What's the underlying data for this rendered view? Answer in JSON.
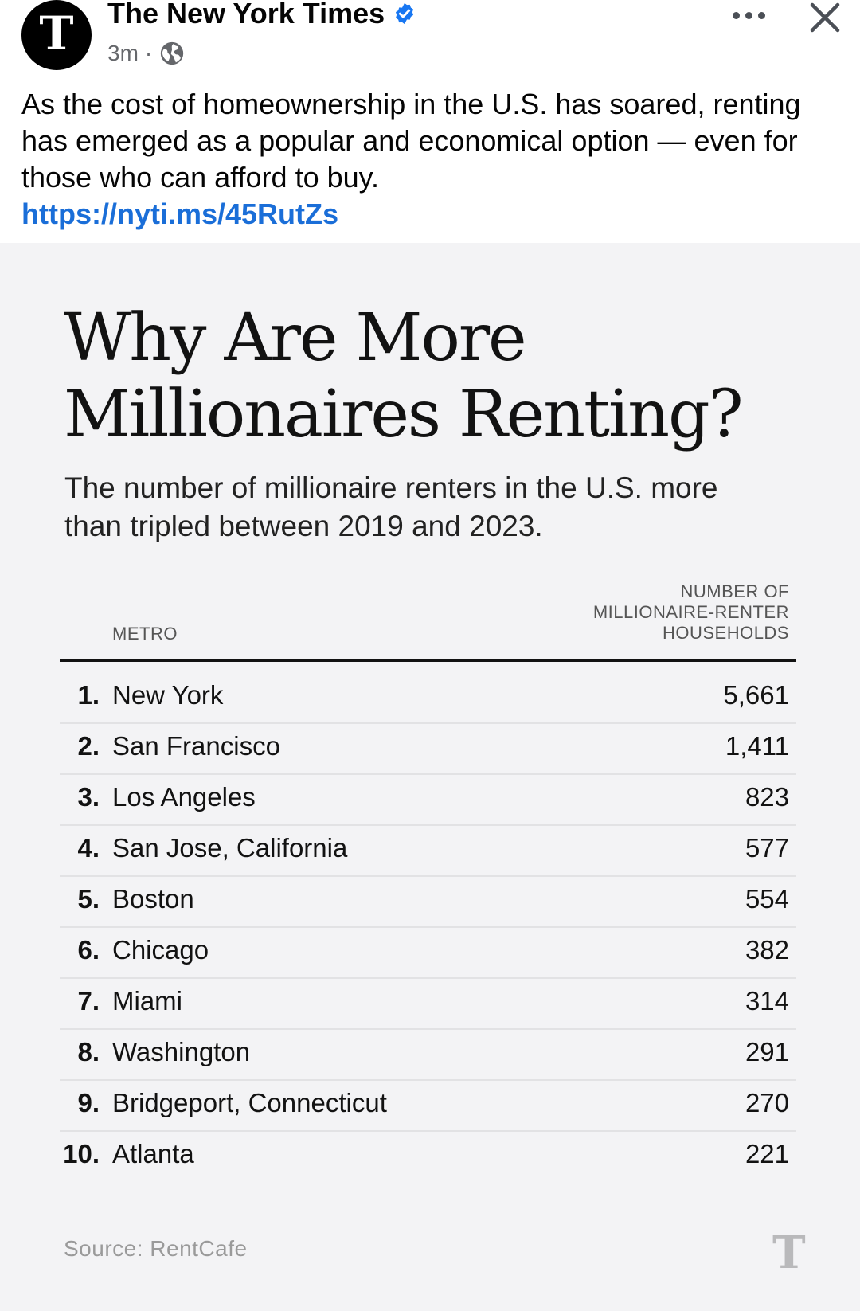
{
  "post": {
    "page_name": "The New York Times",
    "avatar_glyph": "T",
    "time_ago": "3m",
    "meta_separator": "·",
    "verified_icon": "verified-badge-icon",
    "privacy_icon": "globe-icon",
    "more_icon": "more-options-icon",
    "close_icon": "close-icon",
    "caption": "As the cost of homeownership in the U.S. has soared, renting has emerged as a popular and economical option — even for those who can afford to buy.",
    "link": "https://nyti.ms/45RutZs",
    "colors": {
      "link": "#1a6ed8",
      "verified": "#1877f2"
    }
  },
  "graphic": {
    "title": "Why Are More Millionaires Renting?",
    "subtitle": "The number of millionaire renters in the U.S. more than tripled between 2019 and 2023.",
    "column_metro": "METRO",
    "column_value_lines": [
      "NUMBER OF",
      "MILLIONAIRE-RENTER",
      "HOUSEHOLDS"
    ],
    "source": "Source: RentCafe",
    "watermark_glyph": "T"
  },
  "chart_data": {
    "type": "table",
    "columns": [
      "METRO",
      "NUMBER OF MILLIONAIRE-RENTER HOUSEHOLDS"
    ],
    "rows": [
      {
        "rank": "1.",
        "metro": "New York",
        "value": "5,661"
      },
      {
        "rank": "2.",
        "metro": "San Francisco",
        "value": "1,411"
      },
      {
        "rank": "3.",
        "metro": "Los Angeles",
        "value": "823"
      },
      {
        "rank": "4.",
        "metro": "San Jose, California",
        "value": "577"
      },
      {
        "rank": "5.",
        "metro": "Boston",
        "value": "554"
      },
      {
        "rank": "6.",
        "metro": "Chicago",
        "value": "382"
      },
      {
        "rank": "7.",
        "metro": "Miami",
        "value": "314"
      },
      {
        "rank": "8.",
        "metro": "Washington",
        "value": "291"
      },
      {
        "rank": "9.",
        "metro": "Bridgeport, Connecticut",
        "value": "270"
      },
      {
        "rank": "10.",
        "metro": "Atlanta",
        "value": "221"
      }
    ]
  }
}
